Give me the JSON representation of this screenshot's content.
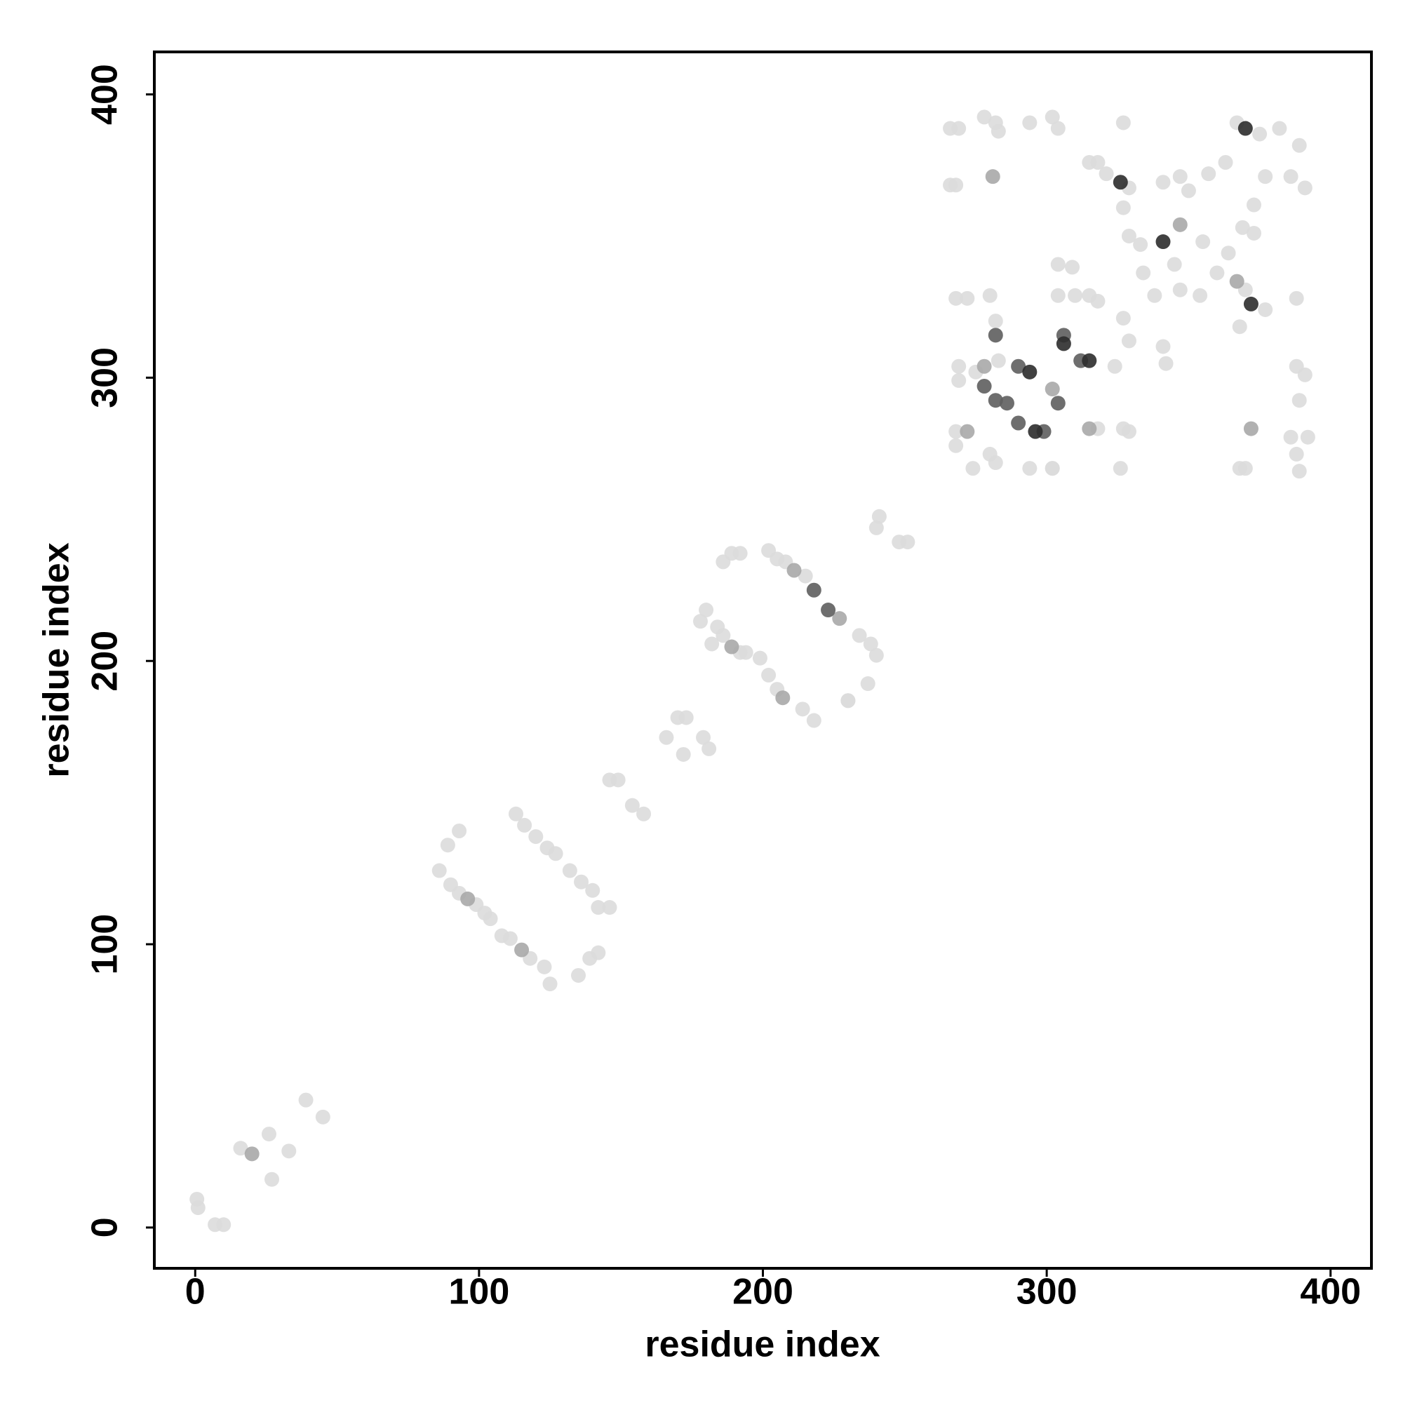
{
  "chart_data": {
    "type": "scatter",
    "xlabel": "residue index",
    "ylabel": "residue index",
    "xlim": [
      -14.4,
      414.4
    ],
    "ylim": [
      -14.4,
      415
    ],
    "xticks": [
      0,
      100,
      200,
      300,
      400
    ],
    "yticks": [
      0,
      100,
      200,
      300,
      400
    ],
    "series": [
      {
        "color": "#dcdcdc",
        "x": [
          0.6,
          1,
          7,
          10,
          16,
          26,
          27,
          33,
          39,
          45,
          86,
          89,
          93,
          90,
          93,
          99,
          102,
          104,
          108,
          111,
          118,
          123,
          125,
          113,
          116,
          120,
          124,
          127,
          132,
          136,
          140,
          142,
          146,
          135,
          139,
          142,
          146,
          149,
          154,
          158,
          166,
          170,
          173,
          172,
          179,
          181,
          178,
          180,
          184,
          186,
          192,
          194,
          182,
          186,
          189,
          192,
          199,
          202,
          205,
          214,
          218,
          202,
          205,
          208,
          215,
          230,
          234,
          238,
          240,
          230,
          237,
          241,
          240,
          248,
          251,
          266,
          269,
          278,
          282,
          283,
          294,
          302,
          304,
          327,
          266,
          268,
          315,
          318,
          321,
          329,
          341,
          347,
          357,
          363,
          367,
          375,
          382,
          389,
          386,
          391,
          377,
          373,
          369,
          364,
          360,
          333,
          334,
          338,
          347,
          354,
          370,
          377,
          368,
          355,
          345,
          350,
          327,
          329,
          327,
          329,
          324,
          341,
          342,
          304,
          309,
          304,
          310,
          315,
          318,
          268,
          272,
          280,
          282,
          269,
          269,
          275,
          283,
          268,
          268,
          274,
          280,
          282,
          302,
          294,
          302,
          318,
          327,
          329,
          326,
          370,
          368,
          386,
          388,
          389,
          392,
          388,
          391,
          389,
          388,
          373
        ],
        "y": [
          10,
          7,
          1,
          1,
          28,
          33,
          17,
          27,
          45,
          39,
          126,
          135,
          140,
          121,
          118,
          114,
          111,
          109,
          103,
          102,
          95,
          92,
          86,
          146,
          142,
          138,
          134,
          132,
          126,
          122,
          119,
          113,
          113,
          89,
          95,
          97,
          158,
          158,
          149,
          146,
          173,
          180,
          180,
          167,
          173,
          169,
          214,
          218,
          212,
          209,
          203,
          203,
          206,
          235,
          238,
          238,
          201,
          195,
          190,
          183,
          179,
          239,
          236,
          235,
          230,
          186,
          209,
          206,
          202,
          186,
          192,
          251,
          247,
          242,
          242,
          388,
          388,
          392,
          390,
          387,
          390,
          392,
          388,
          390,
          368,
          368,
          376,
          376,
          372,
          367,
          369,
          371,
          372,
          376,
          390,
          386,
          388,
          382,
          371,
          367,
          371,
          361,
          353,
          344,
          337,
          347,
          337,
          329,
          331,
          329,
          331,
          324,
          318,
          348,
          340,
          366,
          360,
          350,
          321,
          313,
          304,
          311,
          305,
          340,
          339,
          329,
          329,
          329,
          327,
          328,
          328,
          329,
          320,
          304,
          299,
          302,
          306,
          281,
          276,
          268,
          273,
          270,
          268,
          268,
          268,
          282,
          282,
          281,
          268,
          268,
          268,
          279,
          273,
          267,
          279,
          304,
          301,
          292,
          328,
          351
        ]
      },
      {
        "color": "#a8a8a8",
        "x": [
          20,
          96,
          115,
          189,
          207,
          211,
          227,
          272,
          278,
          281,
          302,
          315,
          347,
          367,
          372
        ],
        "y": [
          26,
          116,
          98,
          205,
          187,
          232,
          215,
          281,
          304,
          371,
          296,
          282,
          354,
          334,
          282
        ]
      },
      {
        "color": "#5e5e5e",
        "x": [
          218,
          223,
          278,
          282,
          282,
          286,
          290,
          290,
          299,
          304,
          306,
          312
        ],
        "y": [
          225,
          218,
          297,
          292,
          315,
          291,
          304,
          284,
          281,
          291,
          315,
          306
        ]
      },
      {
        "color": "#2c2c2c",
        "x": [
          294,
          296,
          306,
          315,
          326,
          341,
          370,
          372
        ],
        "y": [
          302,
          281,
          312,
          306,
          369,
          348,
          388,
          326
        ]
      }
    ]
  }
}
